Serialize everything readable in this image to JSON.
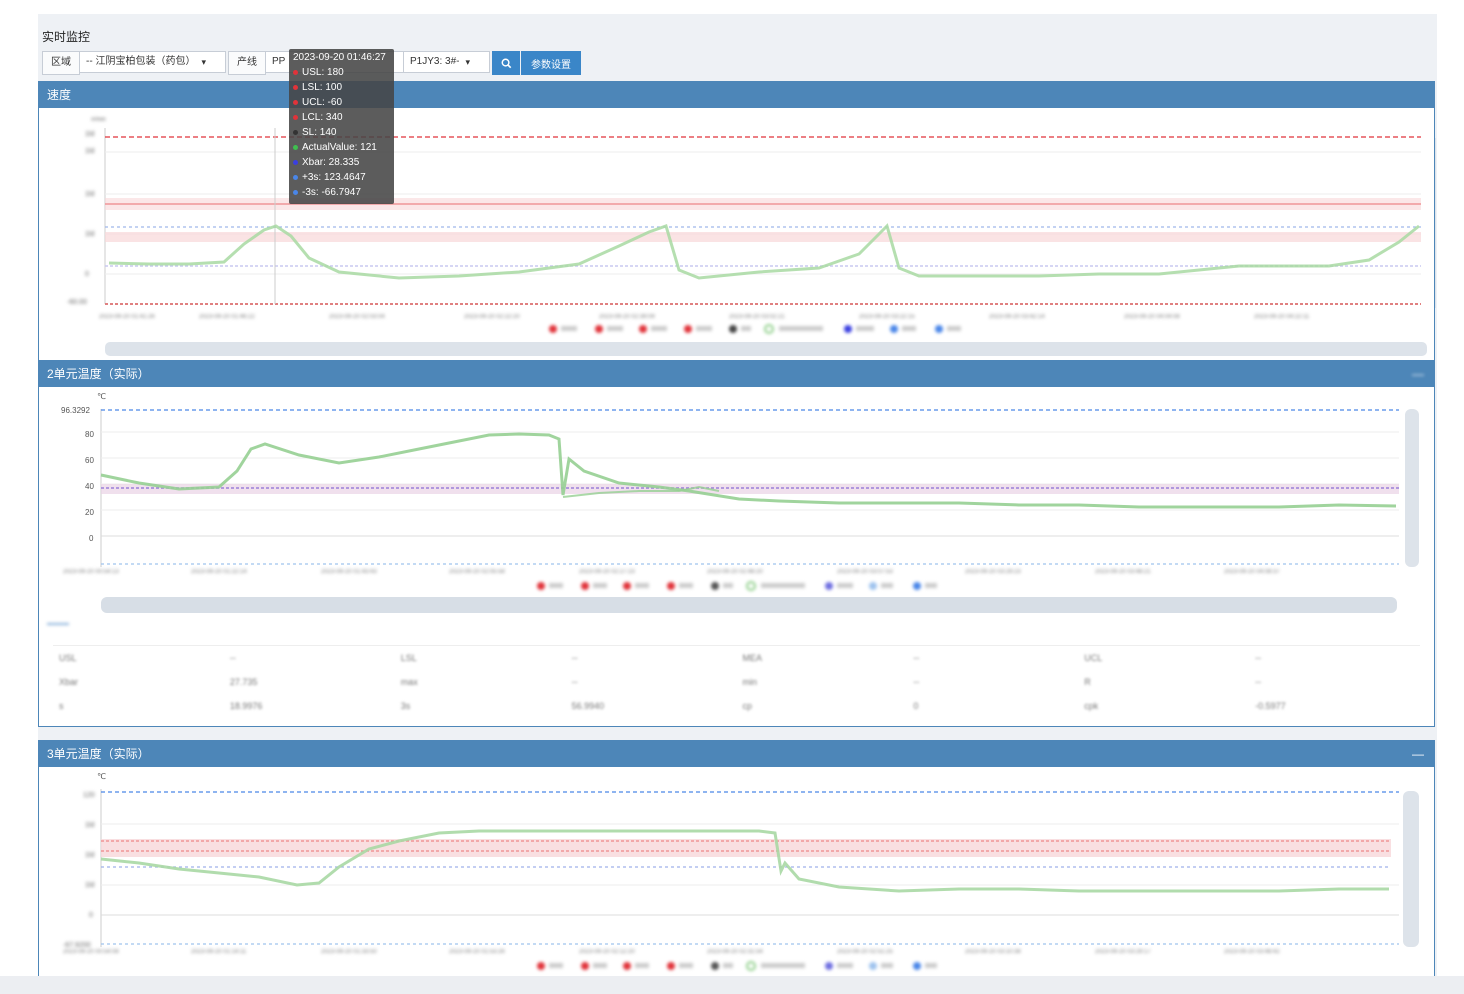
{
  "page": {
    "title": "实时监控"
  },
  "filters": {
    "region_label": "区域",
    "region_value": "-- 江阴宝柏包装（药包）",
    "line_label": "产线",
    "line_value": "PP",
    "device_value": "P1JY3: 3#-",
    "params_button": "参数设置"
  },
  "panels": {
    "speed": {
      "title": "速度"
    },
    "temp2": {
      "title": "2单元温度（实际）",
      "unit": "℃",
      "ymax_label": "96.3292",
      "ticks": [
        "80",
        "60",
        "40",
        "20",
        "0"
      ]
    },
    "temp3": {
      "title": "3单元温度（实际）",
      "unit": "℃"
    }
  },
  "tooltip": {
    "time": "2023-09-20 01:46:27",
    "rows": [
      {
        "label": "USL: 180",
        "color": "#e0333a"
      },
      {
        "label": "LSL: 100",
        "color": "#e0333a"
      },
      {
        "label": "UCL: -60",
        "color": "#e0333a"
      },
      {
        "label": "LCL: 340",
        "color": "#e0333a"
      },
      {
        "label": "SL: 140",
        "color": "#333333"
      },
      {
        "label": "ActualValue: 121",
        "color": "#3fbf4f"
      },
      {
        "label": "Xbar: 28.335",
        "color": "#3a3fe0"
      },
      {
        "label": "+3s: 123.4647",
        "color": "#4a86e8"
      },
      {
        "label": "-3s: -66.7947",
        "color": "#4a86e8"
      }
    ]
  },
  "colors": {
    "header": "#4d86b8",
    "limit_red": "#e0333a",
    "actual_green": "#8fcf8a",
    "xbar_blue": "#6f6fe0",
    "sigma_blue": "#4a86e8"
  }
}
